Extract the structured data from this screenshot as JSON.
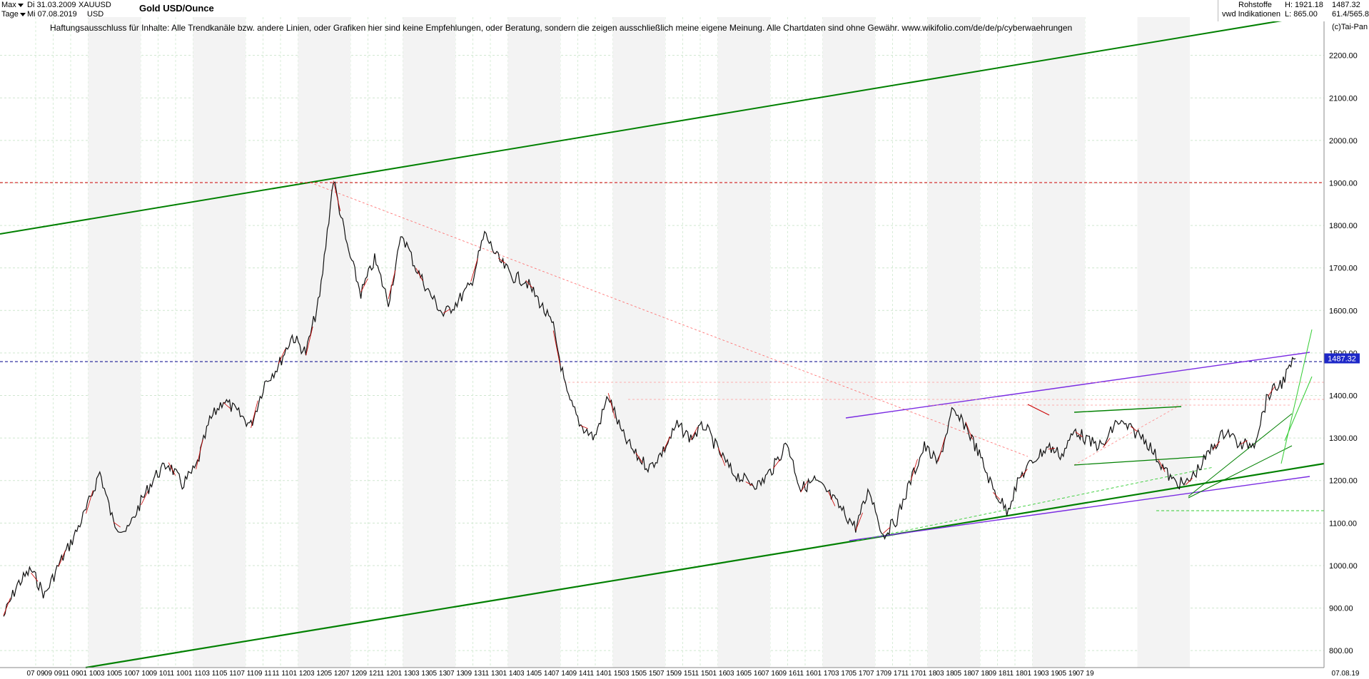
{
  "header": {
    "period_select": "Max",
    "interval_select": "Tage",
    "date_from": "Di 31.03.2009",
    "date_to": "Mi 07.08.2019",
    "symbol": "XAUUSD",
    "currency": "USD",
    "title": "Gold USD/Ounce",
    "category": "Rohstoffe",
    "source": "vwd Indikationen",
    "high": "H: 1921.18",
    "low": "L: 865.00",
    "last": "1487.32",
    "ratio": "61.4/565.8",
    "copyright": "(c)Tai-Pan",
    "disclaimer": "Haftungsausschluss für Inhalte: Alle Trendkanäle bzw. andere Linien, oder Grafiken hier sind keine Empfehlungen, oder Beratung, sondern die zeigen ausschließlich meine eigene Meinung. Alle Chartdaten sind ohne Gewähr.  www.wikifolio.com/de/de/p/cyberwaehrungen"
  },
  "chart_data": {
    "type": "line",
    "title": "Gold USD/Ounce",
    "ylim": [
      760,
      2290
    ],
    "y_ticks": [
      "800.00",
      "900.00",
      "1000.00",
      "1100.00",
      "1200.00",
      "1300.00",
      "1400.00",
      "1500.00",
      "1600.00",
      "1700.00",
      "1800.00",
      "1900.00",
      "2000.00",
      "2100.00",
      "2200.00"
    ],
    "y_tick_values": [
      800,
      900,
      1000,
      1100,
      1200,
      1300,
      1400,
      1500,
      1600,
      1700,
      1800,
      1900,
      2000,
      2100,
      2200
    ],
    "x_labels": [
      "07 09",
      "09 09",
      "11 09",
      "01 10",
      "03 10",
      "05 10",
      "07 10",
      "09 10",
      "11 10",
      "01 11",
      "03 11",
      "05 11",
      "07 11",
      "09 11",
      "11 11",
      "01 12",
      "03 12",
      "05 12",
      "07 12",
      "09 12",
      "11 12",
      "01 13",
      "03 13",
      "05 13",
      "07 13",
      "09 13",
      "11 13",
      "01 14",
      "03 14",
      "05 14",
      "07 14",
      "09 14",
      "11 14",
      "01 15",
      "03 15",
      "05 15",
      "07 15",
      "09 15",
      "11 15",
      "01 16",
      "03 16",
      "05 16",
      "07 16",
      "09 16",
      "11 16",
      "01 17",
      "03 17",
      "05 17",
      "07 17",
      "09 17",
      "11 17",
      "01 18",
      "03 18",
      "05 18",
      "07 18",
      "09 18",
      "11 18",
      "01 19",
      "03 19",
      "05 19",
      "07 19"
    ],
    "x_end_label": "07.08.19",
    "last_price_label": "1487.32",
    "last_price": 1487.32,
    "high_line": 1921.18,
    "series": [
      {
        "values": [
          [
            0,
            880
          ],
          [
            1,
            955
          ],
          [
            2,
            990
          ],
          [
            3,
            930
          ],
          [
            4,
            1000
          ],
          [
            5,
            1060
          ],
          [
            6,
            1130
          ],
          [
            7,
            1220
          ],
          [
            8,
            1100
          ],
          [
            9,
            1080
          ],
          [
            10,
            1150
          ],
          [
            11,
            1210
          ],
          [
            12,
            1240
          ],
          [
            13,
            1190
          ],
          [
            14,
            1230
          ],
          [
            15,
            1340
          ],
          [
            16,
            1390
          ],
          [
            17,
            1360
          ],
          [
            18,
            1330
          ],
          [
            19,
            1430
          ],
          [
            20,
            1470
          ],
          [
            21,
            1540
          ],
          [
            22,
            1500
          ],
          [
            23,
            1630
          ],
          [
            24,
            1910
          ],
          [
            25,
            1750
          ],
          [
            26,
            1640
          ],
          [
            27,
            1720
          ],
          [
            28,
            1620
          ],
          [
            29,
            1780
          ],
          [
            30,
            1700
          ],
          [
            31,
            1640
          ],
          [
            32,
            1590
          ],
          [
            33,
            1620
          ],
          [
            34,
            1660
          ],
          [
            35,
            1780
          ],
          [
            36,
            1720
          ],
          [
            37,
            1680
          ],
          [
            38,
            1670
          ],
          [
            39,
            1620
          ],
          [
            40,
            1560
          ],
          [
            41,
            1400
          ],
          [
            42,
            1330
          ],
          [
            43,
            1300
          ],
          [
            44,
            1400
          ],
          [
            45,
            1310
          ],
          [
            46,
            1260
          ],
          [
            47,
            1230
          ],
          [
            48,
            1270
          ],
          [
            49,
            1330
          ],
          [
            50,
            1300
          ],
          [
            51,
            1330
          ],
          [
            52,
            1270
          ],
          [
            53,
            1220
          ],
          [
            54,
            1200
          ],
          [
            55,
            1190
          ],
          [
            56,
            1230
          ],
          [
            57,
            1290
          ],
          [
            58,
            1180
          ],
          [
            59,
            1200
          ],
          [
            60,
            1170
          ],
          [
            61,
            1130
          ],
          [
            62,
            1090
          ],
          [
            63,
            1180
          ],
          [
            64,
            1070
          ],
          [
            65,
            1110
          ],
          [
            66,
            1200
          ],
          [
            67,
            1280
          ],
          [
            68,
            1240
          ],
          [
            69,
            1360
          ],
          [
            70,
            1330
          ],
          [
            71,
            1260
          ],
          [
            72,
            1180
          ],
          [
            73,
            1130
          ],
          [
            74,
            1210
          ],
          [
            75,
            1250
          ],
          [
            76,
            1280
          ],
          [
            77,
            1260
          ],
          [
            78,
            1320
          ],
          [
            79,
            1290
          ],
          [
            80,
            1280
          ],
          [
            81,
            1340
          ],
          [
            82,
            1320
          ],
          [
            83,
            1300
          ],
          [
            84,
            1250
          ],
          [
            85,
            1200
          ],
          [
            86,
            1190
          ],
          [
            87,
            1230
          ],
          [
            88,
            1280
          ],
          [
            89,
            1320
          ],
          [
            90,
            1280
          ],
          [
            91,
            1290
          ],
          [
            92,
            1400
          ],
          [
            93,
            1430
          ],
          [
            94,
            1487
          ]
        ]
      }
    ]
  }
}
